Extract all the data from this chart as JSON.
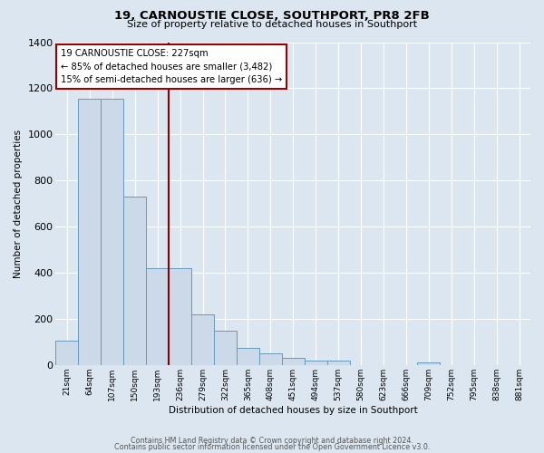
{
  "title": "19, CARNOUSTIE CLOSE, SOUTHPORT, PR8 2FB",
  "subtitle": "Size of property relative to detached houses in Southport",
  "xlabel": "Distribution of detached houses by size in Southport",
  "ylabel": "Number of detached properties",
  "bar_labels": [
    "21sqm",
    "64sqm",
    "107sqm",
    "150sqm",
    "193sqm",
    "236sqm",
    "279sqm",
    "322sqm",
    "365sqm",
    "408sqm",
    "451sqm",
    "494sqm",
    "537sqm",
    "580sqm",
    "623sqm",
    "666sqm",
    "709sqm",
    "752sqm",
    "795sqm",
    "838sqm",
    "881sqm"
  ],
  "bar_heights": [
    107,
    1155,
    1155,
    730,
    420,
    420,
    220,
    150,
    75,
    50,
    30,
    18,
    18,
    0,
    0,
    0,
    10,
    0,
    0,
    0,
    0
  ],
  "bar_color": "#ccd9e8",
  "bar_edgecolor": "#6699bb",
  "vline_color": "#880000",
  "annotation_title": "19 CARNOUSTIE CLOSE: 227sqm",
  "annotation_line1": "← 85% of detached houses are smaller (3,482)",
  "annotation_line2": "15% of semi-detached houses are larger (636) →",
  "annotation_box_facecolor": "#ffffff",
  "annotation_box_edgecolor": "#990000",
  "ylim": [
    0,
    1400
  ],
  "yticks": [
    0,
    200,
    400,
    600,
    800,
    1000,
    1200,
    1400
  ],
  "background_color": "#dce6f0",
  "grid_color": "#ffffff",
  "footer1": "Contains HM Land Registry data © Crown copyright and database right 2024.",
  "footer2": "Contains public sector information licensed under the Open Government Licence v3.0."
}
